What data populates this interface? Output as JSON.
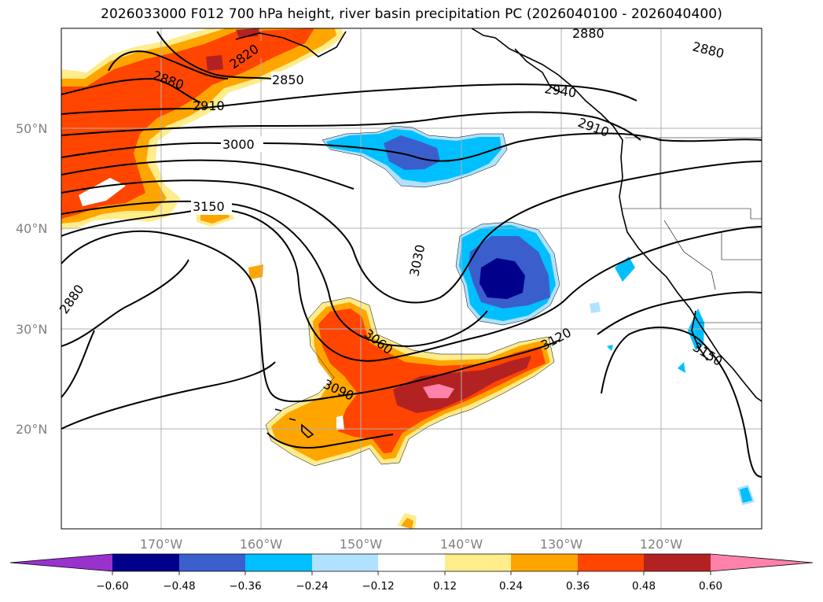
{
  "title": "2026033000 F012 700 hPa height, river basin precipitation PC (2026040100 - 2026040400)",
  "map": {
    "lat_labels": [
      "50°N",
      "40°N",
      "30°N",
      "20°N"
    ],
    "lon_labels": [
      "170°W",
      "160°W",
      "150°W",
      "140°W",
      "130°W",
      "120°W"
    ]
  },
  "contour_labels": [
    "2820",
    "2850",
    "2880",
    "2910",
    "3000",
    "3150",
    "2880",
    "2880",
    "2940",
    "2910",
    "3030",
    "3060",
    "3090",
    "3120",
    "3150",
    "2880"
  ],
  "colorbar": {
    "colors": [
      "#9932cc",
      "#00008b",
      "#3a5fcd",
      "#00bfff",
      "#b0e2ff",
      "#ffffff",
      "#ffec8b",
      "#ffa500",
      "#ff4500",
      "#b22222",
      "#ff82ab"
    ],
    "ticks": [
      "−0.60",
      "−0.48",
      "−0.36",
      "−0.24",
      "−0.12",
      "0.12",
      "0.24",
      "0.36",
      "0.48",
      "0.60"
    ]
  }
}
